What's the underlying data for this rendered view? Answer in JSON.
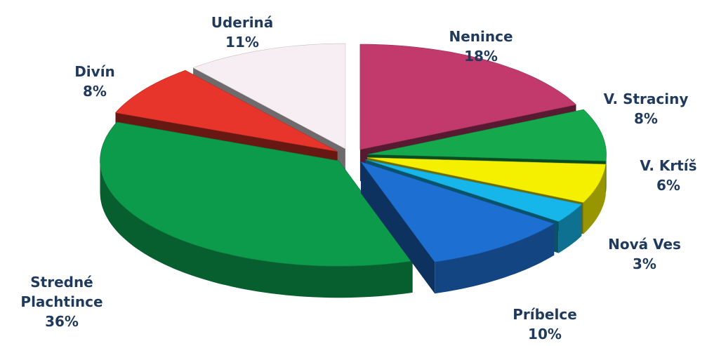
{
  "chart_data": {
    "type": "pie",
    "categories": [
      "Nenince",
      "V. Straciny",
      "V. Krtíš",
      "Nová Ves",
      "Príbelce",
      "Stredné Plachtince",
      "Divín",
      "Uderiná"
    ],
    "values": [
      18,
      8,
      6,
      3,
      10,
      36,
      8,
      11
    ],
    "value_labels": [
      "18%",
      "8%",
      "6%",
      "3%",
      "10%",
      "36%",
      "8%",
      "11%"
    ],
    "colors": [
      "#c13a6b",
      "#16a84c",
      "#f4f000",
      "#16b6ea",
      "#1d6fd2",
      "#0c9a4b",
      "#e8352b",
      "#f6eef3"
    ]
  }
}
